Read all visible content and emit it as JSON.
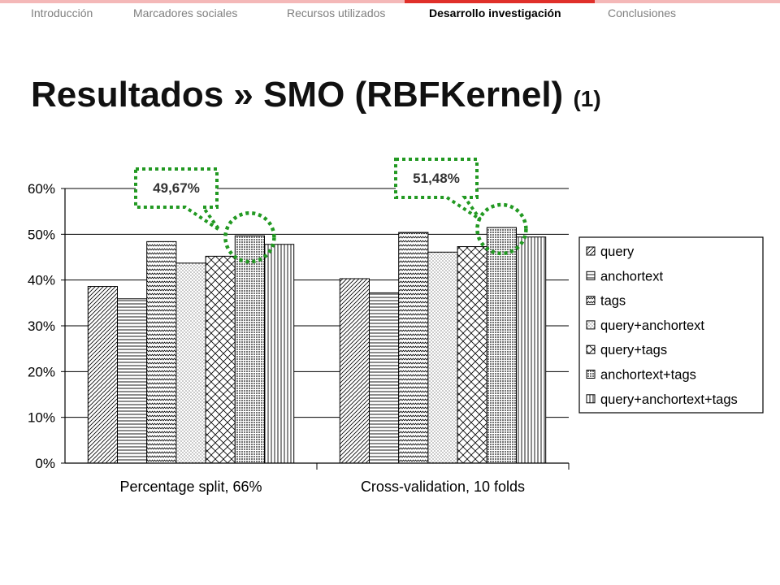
{
  "nav": {
    "items": [
      {
        "label": "Introducción",
        "active": false
      },
      {
        "label": "Marcadores sociales",
        "active": false
      },
      {
        "label": "Recursos utilizados",
        "active": false
      },
      {
        "label": "Desarrollo investigación",
        "active": true
      },
      {
        "label": "Conclusiones",
        "active": false
      }
    ],
    "accent_color": "#e0302a",
    "bar_color": "#f4b8b8"
  },
  "slide": {
    "title": "Resultados » SMO (RBFKernel)",
    "title_suffix": "(1)"
  },
  "chart_data": {
    "type": "bar",
    "categories": [
      "Percentage split, 66%",
      "Cross-validation, 10 folds"
    ],
    "ylim": [
      0,
      60
    ],
    "ytick_labels": [
      "0%",
      "10%",
      "20%",
      "30%",
      "40%",
      "50%",
      "60%"
    ],
    "grid": true,
    "legend_position": "right",
    "series": [
      {
        "name": "query",
        "values": [
          38.6,
          40.3
        ],
        "pattern": "diag-right"
      },
      {
        "name": "anchortext",
        "values": [
          35.9,
          37.2
        ],
        "pattern": "horizontal"
      },
      {
        "name": "tags",
        "values": [
          48.4,
          50.4
        ],
        "pattern": "zigzag"
      },
      {
        "name": "query+anchortext",
        "values": [
          43.7,
          46.1
        ],
        "pattern": "dots-light"
      },
      {
        "name": "query+tags",
        "values": [
          45.2,
          47.3
        ],
        "pattern": "diag-cross"
      },
      {
        "name": "anchortext+tags",
        "values": [
          49.67,
          51.48
        ],
        "pattern": "dots-dense"
      },
      {
        "name": "query+anchortext+tags",
        "values": [
          47.8,
          49.4
        ],
        "pattern": "vertical"
      }
    ],
    "annotations": [
      {
        "text": "49,67%",
        "category": 0,
        "series": 5
      },
      {
        "text": "51,48%",
        "category": 1,
        "series": 5
      }
    ],
    "annotation_color": "#229922"
  }
}
